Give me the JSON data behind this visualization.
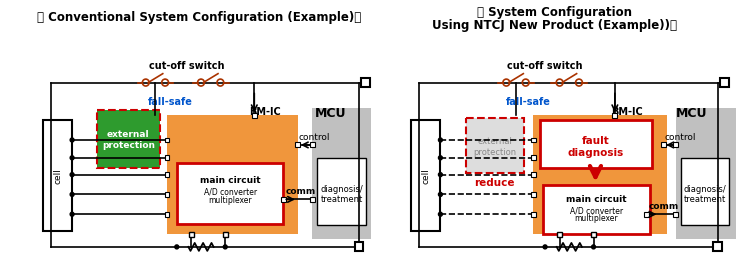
{
  "title_left": "【 Conventional System Configuration (Example)】",
  "title_right_line1": "【 System Configuration",
  "title_right_line2": "Using NTCJ New Product (Example))】",
  "label_cutoff": "cut-off switch",
  "label_failsafe": "fall-safe",
  "label_cell": "cell",
  "label_bmic": "BM-IC",
  "label_mcu": "MCU",
  "label_control": "control",
  "label_comm": "comm",
  "label_maincircuit": "main circuit",
  "label_adc": "A/D converter",
  "label_mux": "multiplexer",
  "label_diag": "diagnosis/\ntreatment",
  "label_extprot": "external\nprotection",
  "label_reduce": "reduce",
  "label_fault": "fault\ndiagnosis",
  "color_orange": "#F0963C",
  "color_green": "#2E9B2E",
  "color_gray_mcu": "#C0C0C0",
  "color_red": "#CC0000",
  "color_blue": "#0055CC",
  "color_switch": "#AA3300",
  "bg_color": "#FFFFFF"
}
